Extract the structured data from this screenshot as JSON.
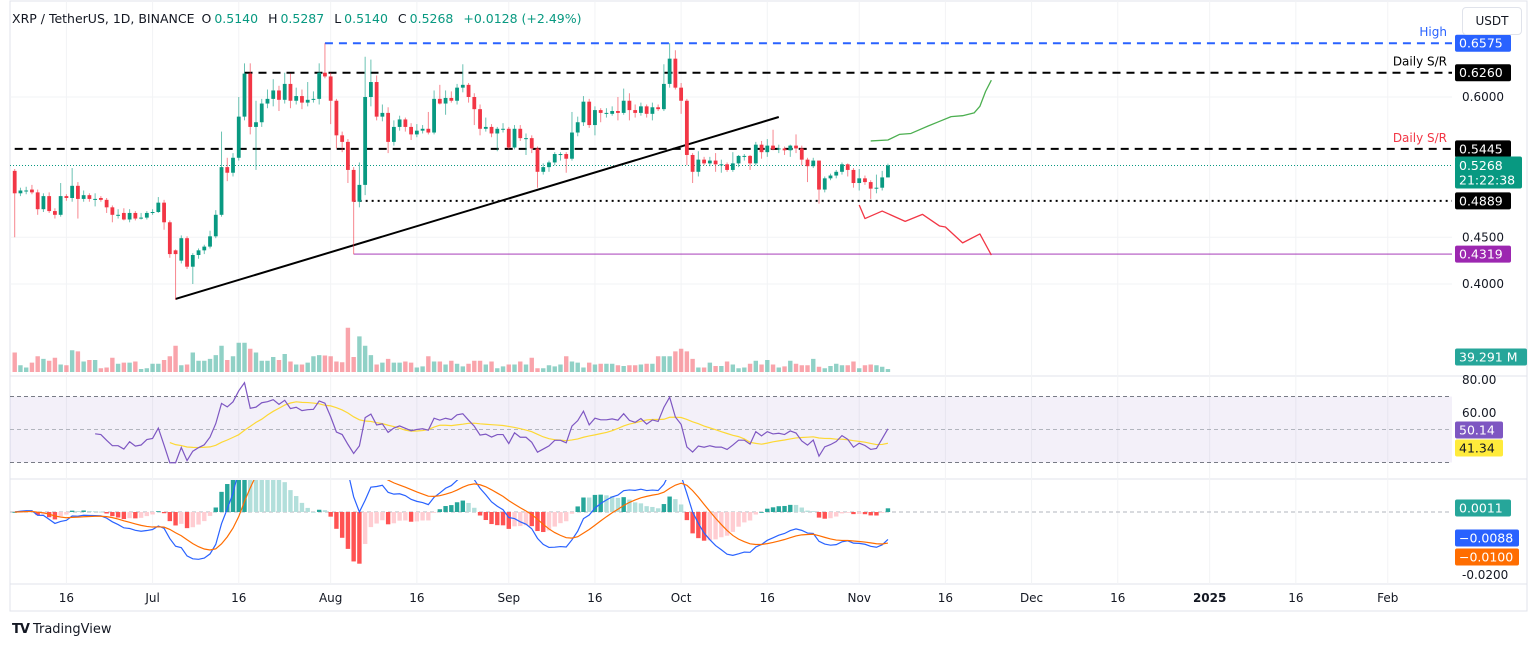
{
  "legend": {
    "symbol": "XRP / TetherUS, 1D, BINANCE",
    "o_label": "O",
    "o": "0.5140",
    "h_label": "H",
    "h": "0.5287",
    "l_label": "L",
    "l": "0.5140",
    "c_label": "C",
    "c": "0.5268",
    "change": "+0.0128 (+2.49%)"
  },
  "currency_button": "USDT",
  "branding": "TradingView",
  "colors": {
    "up": "#089981",
    "down": "#f23645",
    "high_line": "#2962ff",
    "support_low": "#9c27b0",
    "rsi": "#7e57c2",
    "rsi_ma": "#fdd835",
    "macd": "#2962ff",
    "signal": "#ff6d00",
    "hist_up_strong": "#26a69a",
    "hist_up_weak": "#b2dfdb",
    "hist_down_strong": "#ff5252",
    "hist_down_weak": "#ffcdd2",
    "bullish_path": "#4caf50",
    "bearish_path": "#f23645"
  },
  "chart_data": {
    "type": "candlestick",
    "first_date": "2024-06-07",
    "interval": "1D",
    "price_ticks": [
      "0.4000",
      "0.4500",
      "0.6000"
    ],
    "price_range": [
      0.36,
      0.7
    ],
    "x_ticks": [
      {
        "label": "16",
        "date": "2024-06-16"
      },
      {
        "label": "Jul",
        "date": "2024-07-01"
      },
      {
        "label": "16",
        "date": "2024-07-16"
      },
      {
        "label": "Aug",
        "date": "2024-08-01"
      },
      {
        "label": "16",
        "date": "2024-08-16"
      },
      {
        "label": "Sep",
        "date": "2024-09-01"
      },
      {
        "label": "16",
        "date": "2024-09-16"
      },
      {
        "label": "Oct",
        "date": "2024-10-01"
      },
      {
        "label": "16",
        "date": "2024-10-16"
      },
      {
        "label": "Nov",
        "date": "2024-11-01"
      },
      {
        "label": "16",
        "date": "2024-11-16"
      },
      {
        "label": "Dec",
        "date": "2024-12-01"
      },
      {
        "label": "16",
        "date": "2024-12-16"
      },
      {
        "label": "2025",
        "date": "2025-01-01",
        "bold": true
      },
      {
        "label": "16",
        "date": "2025-01-16"
      },
      {
        "label": "Feb",
        "date": "2025-02-01"
      }
    ],
    "ohlc": [
      [
        0.521,
        0.523,
        0.45,
        0.497
      ],
      [
        0.497,
        0.503,
        0.494,
        0.5
      ],
      [
        0.499,
        0.504,
        0.496,
        0.5
      ],
      [
        0.501,
        0.506,
        0.496,
        0.498
      ],
      [
        0.498,
        0.501,
        0.474,
        0.48
      ],
      [
        0.48,
        0.497,
        0.477,
        0.494
      ],
      [
        0.494,
        0.498,
        0.476,
        0.478
      ],
      [
        0.478,
        0.481,
        0.47,
        0.474
      ],
      [
        0.474,
        0.508,
        0.472,
        0.494
      ],
      [
        0.494,
        0.496,
        0.489,
        0.492
      ],
      [
        0.492,
        0.524,
        0.488,
        0.505
      ],
      [
        0.505,
        0.509,
        0.47,
        0.491
      ],
      [
        0.491,
        0.5,
        0.488,
        0.495
      ],
      [
        0.495,
        0.497,
        0.488,
        0.491
      ],
      [
        0.491,
        0.497,
        0.483,
        0.491
      ],
      [
        0.492,
        0.494,
        0.488,
        0.49
      ],
      [
        0.49,
        0.492,
        0.476,
        0.482
      ],
      [
        0.482,
        0.484,
        0.466,
        0.474
      ],
      [
        0.474,
        0.48,
        0.47,
        0.474
      ],
      [
        0.476,
        0.481,
        0.468,
        0.469
      ],
      [
        0.469,
        0.48,
        0.466,
        0.476
      ],
      [
        0.476,
        0.478,
        0.468,
        0.47
      ],
      [
        0.471,
        0.476,
        0.469,
        0.471
      ],
      [
        0.471,
        0.478,
        0.469,
        0.476
      ],
      [
        0.477,
        0.48,
        0.474,
        0.477
      ],
      [
        0.477,
        0.493,
        0.476,
        0.487
      ],
      [
        0.487,
        0.49,
        0.458,
        0.466
      ],
      [
        0.466,
        0.468,
        0.428,
        0.432
      ],
      [
        0.436,
        0.437,
        0.383,
        0.432
      ],
      [
        0.425,
        0.452,
        0.422,
        0.449
      ],
      [
        0.449,
        0.451,
        0.416,
        0.4185
      ],
      [
        0.4185,
        0.433,
        0.4,
        0.431
      ],
      [
        0.431,
        0.438,
        0.427,
        0.436
      ],
      [
        0.436,
        0.442,
        0.432,
        0.44
      ],
      [
        0.44,
        0.457,
        0.438,
        0.451
      ],
      [
        0.451,
        0.479,
        0.449,
        0.474
      ],
      [
        0.474,
        0.563,
        0.472,
        0.525
      ],
      [
        0.525,
        0.535,
        0.51,
        0.519
      ],
      [
        0.519,
        0.54,
        0.515,
        0.535
      ],
      [
        0.535,
        0.6,
        0.532,
        0.579
      ],
      [
        0.579,
        0.636,
        0.575,
        0.625
      ],
      [
        0.625,
        0.636,
        0.56,
        0.568
      ],
      [
        0.568,
        0.596,
        0.522,
        0.573
      ],
      [
        0.573,
        0.598,
        0.568,
        0.593
      ],
      [
        0.593,
        0.608,
        0.588,
        0.598
      ],
      [
        0.598,
        0.619,
        0.59,
        0.607
      ],
      [
        0.607,
        0.612,
        0.585,
        0.597
      ],
      [
        0.597,
        0.626,
        0.593,
        0.614
      ],
      [
        0.614,
        0.625,
        0.588,
        0.596
      ],
      [
        0.596,
        0.61,
        0.592,
        0.601
      ],
      [
        0.601,
        0.608,
        0.587,
        0.594
      ],
      [
        0.594,
        0.616,
        0.59,
        0.597
      ],
      [
        0.597,
        0.606,
        0.594,
        0.598
      ],
      [
        0.598,
        0.636,
        0.592,
        0.626
      ],
      [
        0.626,
        0.6575,
        0.62,
        0.622
      ],
      [
        0.622,
        0.626,
        0.571,
        0.596
      ],
      [
        0.596,
        0.598,
        0.545,
        0.559
      ],
      [
        0.559,
        0.563,
        0.541,
        0.552
      ],
      [
        0.552,
        0.555,
        0.508,
        0.522
      ],
      [
        0.522,
        0.525,
        0.4319,
        0.488
      ],
      [
        0.488,
        0.53,
        0.482,
        0.506
      ],
      [
        0.506,
        0.643,
        0.495,
        0.6
      ],
      [
        0.6,
        0.64,
        0.59,
        0.616
      ],
      [
        0.616,
        0.623,
        0.575,
        0.579
      ],
      [
        0.579,
        0.592,
        0.574,
        0.583
      ],
      [
        0.583,
        0.589,
        0.54,
        0.552
      ],
      [
        0.552,
        0.575,
        0.548,
        0.568
      ],
      [
        0.568,
        0.58,
        0.564,
        0.576
      ],
      [
        0.576,
        0.578,
        0.563,
        0.568
      ],
      [
        0.568,
        0.572,
        0.554,
        0.56
      ],
      [
        0.56,
        0.571,
        0.557,
        0.564
      ],
      [
        0.564,
        0.57,
        0.561,
        0.566
      ],
      [
        0.566,
        0.584,
        0.56,
        0.562
      ],
      [
        0.562,
        0.607,
        0.56,
        0.598
      ],
      [
        0.598,
        0.613,
        0.592,
        0.593
      ],
      [
        0.593,
        0.607,
        0.581,
        0.599
      ],
      [
        0.599,
        0.606,
        0.594,
        0.596
      ],
      [
        0.596,
        0.614,
        0.592,
        0.61
      ],
      [
        0.61,
        0.635,
        0.605,
        0.613
      ],
      [
        0.613,
        0.615,
        0.594,
        0.6
      ],
      [
        0.6,
        0.604,
        0.57,
        0.587
      ],
      [
        0.587,
        0.592,
        0.559,
        0.566
      ],
      [
        0.566,
        0.578,
        0.563,
        0.568
      ],
      [
        0.568,
        0.571,
        0.557,
        0.561
      ],
      [
        0.561,
        0.568,
        0.542,
        0.566
      ],
      [
        0.566,
        0.572,
        0.562,
        0.566
      ],
      [
        0.566,
        0.568,
        0.544,
        0.546
      ],
      [
        0.546,
        0.57,
        0.544,
        0.566
      ],
      [
        0.566,
        0.57,
        0.553,
        0.556
      ],
      [
        0.556,
        0.561,
        0.538,
        0.556
      ],
      [
        0.556,
        0.559,
        0.54,
        0.545
      ],
      [
        0.545,
        0.547,
        0.503,
        0.52
      ],
      [
        0.52,
        0.529,
        0.517,
        0.525
      ],
      [
        0.525,
        0.532,
        0.52,
        0.53
      ],
      [
        0.53,
        0.541,
        0.527,
        0.539
      ],
      [
        0.539,
        0.541,
        0.532,
        0.539
      ],
      [
        0.539,
        0.541,
        0.519,
        0.534
      ],
      [
        0.534,
        0.584,
        0.532,
        0.562
      ],
      [
        0.562,
        0.579,
        0.558,
        0.573
      ],
      [
        0.573,
        0.601,
        0.569,
        0.595
      ],
      [
        0.595,
        0.598,
        0.567,
        0.57
      ],
      [
        0.57,
        0.59,
        0.559,
        0.586
      ],
      [
        0.586,
        0.588,
        0.573,
        0.583
      ],
      [
        0.583,
        0.588,
        0.578,
        0.583
      ],
      [
        0.582,
        0.59,
        0.58,
        0.585
      ],
      [
        0.585,
        0.6,
        0.575,
        0.583
      ],
      [
        0.583,
        0.609,
        0.581,
        0.596
      ],
      [
        0.596,
        0.604,
        0.575,
        0.586
      ],
      [
        0.586,
        0.592,
        0.578,
        0.583
      ],
      [
        0.583,
        0.594,
        0.58,
        0.59
      ],
      [
        0.59,
        0.592,
        0.578,
        0.582
      ],
      [
        0.582,
        0.594,
        0.575,
        0.589
      ],
      [
        0.589,
        0.592,
        0.585,
        0.587
      ],
      [
        0.587,
        0.635,
        0.585,
        0.614
      ],
      [
        0.614,
        0.6575,
        0.61,
        0.641
      ],
      [
        0.641,
        0.65,
        0.608,
        0.61
      ],
      [
        0.61,
        0.615,
        0.582,
        0.596
      ],
      [
        0.596,
        0.598,
        0.527,
        0.538
      ],
      [
        0.538,
        0.54,
        0.508,
        0.52
      ],
      [
        0.52,
        0.542,
        0.515,
        0.533
      ],
      [
        0.533,
        0.536,
        0.527,
        0.529
      ],
      [
        0.529,
        0.536,
        0.526,
        0.532
      ],
      [
        0.532,
        0.54,
        0.52,
        0.528
      ],
      [
        0.528,
        0.533,
        0.519,
        0.528
      ],
      [
        0.528,
        0.53,
        0.52,
        0.522
      ],
      [
        0.522,
        0.541,
        0.52,
        0.529
      ],
      [
        0.529,
        0.538,
        0.525,
        0.537
      ],
      [
        0.537,
        0.539,
        0.532,
        0.537
      ],
      [
        0.537,
        0.538,
        0.522,
        0.529
      ],
      [
        0.529,
        0.552,
        0.527,
        0.549
      ],
      [
        0.549,
        0.553,
        0.534,
        0.541
      ],
      [
        0.541,
        0.555,
        0.536,
        0.548
      ],
      [
        0.548,
        0.565,
        0.543,
        0.544
      ],
      [
        0.544,
        0.549,
        0.54,
        0.545
      ],
      [
        0.545,
        0.547,
        0.538,
        0.543
      ],
      [
        0.543,
        0.549,
        0.536,
        0.548
      ],
      [
        0.548,
        0.56,
        0.54,
        0.545
      ],
      [
        0.545,
        0.548,
        0.527,
        0.533
      ],
      [
        0.533,
        0.535,
        0.509,
        0.526
      ],
      [
        0.526,
        0.535,
        0.524,
        0.532
      ],
      [
        0.532,
        0.532,
        0.486,
        0.501
      ],
      [
        0.501,
        0.515,
        0.498,
        0.513
      ],
      [
        0.513,
        0.518,
        0.511,
        0.516
      ],
      [
        0.516,
        0.522,
        0.513,
        0.52
      ],
      [
        0.52,
        0.53,
        0.517,
        0.528
      ],
      [
        0.528,
        0.529,
        0.515,
        0.522
      ],
      [
        0.522,
        0.524,
        0.503,
        0.508
      ],
      [
        0.508,
        0.523,
        0.5,
        0.513
      ],
      [
        0.513,
        0.516,
        0.506,
        0.509
      ],
      [
        0.509,
        0.511,
        0.491,
        0.502
      ],
      [
        0.502,
        0.517,
        0.497,
        0.503
      ],
      [
        0.503,
        0.521,
        0.5,
        0.514
      ],
      [
        0.514,
        0.5287,
        0.514,
        0.5268
      ]
    ],
    "volume_m": [
      260,
      90,
      60,
      125,
      210,
      175,
      150,
      190,
      100,
      90,
      290,
      275,
      140,
      160,
      160,
      50,
      60,
      190,
      110,
      125,
      125,
      140,
      40,
      50,
      110,
      110,
      160,
      210,
      350,
      90,
      100,
      260,
      150,
      150,
      175,
      225,
      350,
      160,
      210,
      390,
      390,
      310,
      260,
      150,
      150,
      200,
      160,
      240,
      140,
      100,
      100,
      125,
      210,
      225,
      220,
      210,
      140,
      130,
      590,
      200,
      475,
      350,
      225,
      100,
      125,
      175,
      125,
      125,
      140,
      125,
      60,
      75,
      210,
      140,
      140,
      100,
      150,
      110,
      75,
      110,
      150,
      150,
      100,
      140,
      50,
      75,
      100,
      100,
      140,
      100,
      190,
      50,
      50,
      90,
      75,
      100,
      210,
      140,
      125,
      60,
      125,
      100,
      110,
      110,
      110,
      90,
      80,
      90,
      90,
      100,
      110,
      110,
      210,
      210,
      210,
      275,
      310,
      275,
      175,
      60,
      60,
      125,
      80,
      80,
      140,
      100,
      50,
      60,
      110,
      150,
      100,
      160,
      100,
      60,
      75,
      150,
      110,
      90,
      90,
      175,
      70,
      50,
      80,
      110,
      90,
      90,
      140,
      50,
      90,
      100,
      90,
      70,
      39.291
    ],
    "levels": [
      {
        "price": 0.6575,
        "label": "0.6575",
        "text": "High",
        "style": "dashed",
        "color": "#2962ff",
        "from": "2024-07-31"
      },
      {
        "price": 0.626,
        "label": "0.6260",
        "text": "Daily S/R",
        "style": "dashed",
        "color": "#000000",
        "text_color": "#000000",
        "from": "2024-07-17"
      },
      {
        "price": 0.5445,
        "label": "0.5445",
        "text": "Daily S/R",
        "style": "dashed",
        "color": "#000000",
        "text_color": "#f23645",
        "from": "2024-06-07"
      },
      {
        "price": 0.4889,
        "label": "0.4889",
        "text": "",
        "style": "dotted",
        "color": "#000000",
        "from": "2024-08-05"
      },
      {
        "price": 0.4319,
        "label": "0.4319",
        "text": "",
        "style": "solid",
        "color": "#9c27b0",
        "from": "2024-08-05"
      }
    ],
    "last_price": {
      "price": 0.5268,
      "label": "0.5268",
      "countdown": "21:22:38"
    },
    "trendline": [
      [
        "2024-07-05",
        0.384
      ],
      [
        "2024-10-18",
        0.5786
      ]
    ],
    "bullish_path": [
      [
        "2024-11-03",
        0.553
      ],
      [
        "2024-11-06",
        0.554
      ],
      [
        "2024-11-08",
        0.56
      ],
      [
        "2024-11-10",
        0.561
      ],
      [
        "2024-11-13",
        0.569
      ],
      [
        "2024-11-15",
        0.574
      ],
      [
        "2024-11-17",
        0.579
      ],
      [
        "2024-11-19",
        0.58
      ],
      [
        "2024-11-21",
        0.583
      ],
      [
        "2024-11-22",
        0.59
      ],
      [
        "2024-11-23",
        0.606
      ],
      [
        "2024-11-24",
        0.618
      ]
    ],
    "bearish_path": [
      [
        "2024-11-01",
        0.4845
      ],
      [
        "2024-11-02",
        0.47
      ],
      [
        "2024-11-05",
        0.478
      ],
      [
        "2024-11-09",
        0.467
      ],
      [
        "2024-11-12",
        0.4745
      ],
      [
        "2024-11-15",
        0.462
      ],
      [
        "2024-11-16",
        0.461
      ],
      [
        "2024-11-19",
        0.444
      ],
      [
        "2024-11-22",
        0.4535
      ],
      [
        "2024-11-24",
        0.431
      ]
    ],
    "volume_label": "39.291 M",
    "rsi": {
      "length": 14,
      "ma_length": 14,
      "ticks": [
        "80.00",
        "60.00"
      ],
      "value_label": "50.14",
      "ma_label": "41.34",
      "band": [
        30,
        70
      ]
    },
    "macd": {
      "fast": 12,
      "slow": 26,
      "signal": 9,
      "ticks": [
        "-0.0200"
      ],
      "hist_label": "0.0011",
      "macd_label": "−0.0088",
      "signal_label": "−0.0100"
    }
  }
}
